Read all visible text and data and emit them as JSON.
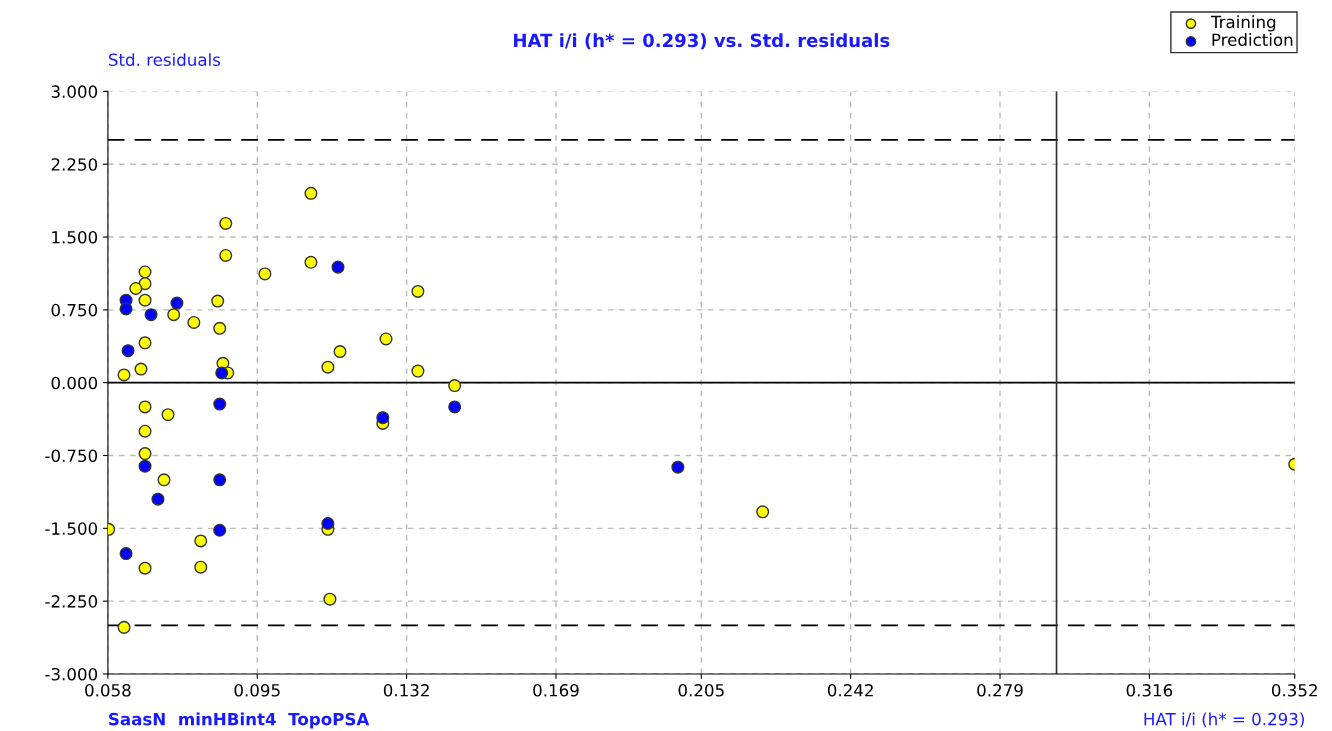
{
  "chart_data": {
    "type": "scatter",
    "title": "HAT i/i (h* = 0.293) vs. Std. residuals",
    "xlabel": "HAT i/i (h* = 0.293)",
    "ylabel": "Std. residuals",
    "annotations": [
      "SaasN  minHBint4  TopoPSA"
    ],
    "series": [
      {
        "name": "Training",
        "color": "#ffff00",
        "x": [
          0.1083,
          0.0872,
          0.0872,
          0.0672,
          0.1083,
          0.0969,
          0.0672,
          0.0649,
          0.0672,
          0.1348,
          0.0852,
          0.0743,
          0.0793,
          0.0857,
          0.1269,
          0.1155,
          0.0672,
          0.1125,
          0.0865,
          0.0877,
          0.0662,
          0.062,
          0.1348,
          0.1439,
          0.0672,
          0.0729,
          0.1261,
          0.0672,
          0.0672,
          0.0719,
          0.0582,
          0.081,
          0.0672,
          0.081,
          0.1125,
          0.113,
          0.062,
          0.2202,
          0.352
        ],
        "values": [
          1.95,
          1.64,
          1.31,
          1.14,
          1.24,
          1.12,
          1.02,
          0.97,
          0.85,
          0.94,
          0.84,
          0.7,
          0.62,
          0.56,
          0.45,
          0.32,
          0.41,
          0.16,
          0.2,
          0.1,
          0.14,
          0.08,
          0.12,
          -0.03,
          -0.25,
          -0.33,
          -0.42,
          -0.5,
          -0.73,
          -1.0,
          -1.51,
          -1.63,
          -1.91,
          -1.9,
          -1.51,
          -2.23,
          -2.52,
          -1.33,
          -0.84
        ]
      },
      {
        "name": "Prediction",
        "color": "#0000ff",
        "x": [
          0.0625,
          0.0625,
          0.0751,
          0.0687,
          0.063,
          0.0862,
          0.115,
          0.0857,
          0.0672,
          0.0857,
          0.0704,
          0.0857,
          0.1125,
          0.0625,
          0.1439,
          0.1261,
          0.1992
        ],
        "values": [
          0.85,
          0.76,
          0.82,
          0.7,
          0.33,
          0.1,
          1.19,
          -0.22,
          -0.86,
          -1.0,
          -1.2,
          -1.52,
          -1.45,
          -1.76,
          -0.25,
          -0.36,
          -0.87
        ]
      }
    ],
    "xlim": [
      0.058,
      0.352
    ],
    "xticks": [
      0.058,
      0.095,
      0.132,
      0.169,
      0.205,
      0.242,
      0.279,
      0.316,
      0.352
    ],
    "ylim": [
      -3,
      3
    ],
    "yticks": [
      {
        "value": -3,
        "label": "-3.000"
      },
      {
        "value": -2.25,
        "label": "-2.250"
      },
      {
        "value": -1.5,
        "label": "-1.500"
      },
      {
        "value": -0.75,
        "label": "-0.750"
      },
      {
        "value": 0,
        "label": "0.000"
      },
      {
        "value": 0.75,
        "label": "0.750"
      },
      {
        "value": 1.5,
        "label": "1.500"
      },
      {
        "value": 2.25,
        "label": "2.250"
      },
      {
        "value": 3,
        "label": "3.000"
      }
    ],
    "ref_lines": [
      {
        "axis": "y",
        "value": 2.5,
        "line_style": "dashed",
        "color": "#000000"
      },
      {
        "axis": "y",
        "value": -2.5,
        "line_style": "dashed",
        "color": "#000000"
      },
      {
        "axis": "y",
        "value": 0,
        "line_style": "solid",
        "color": "#000000"
      },
      {
        "axis": "x",
        "value": 0.293,
        "line_style": "solid",
        "color": "#333333"
      }
    ],
    "grid": true,
    "legend": "top right",
    "marker": "circle"
  }
}
